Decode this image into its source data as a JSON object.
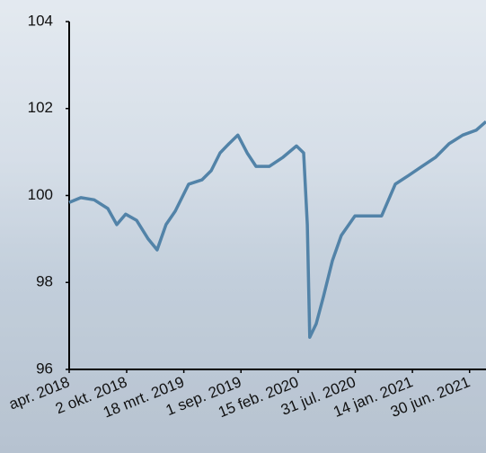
{
  "chart_data": {
    "type": "line",
    "x": [
      "2018-04-17",
      "2018-05-21",
      "2018-06-29",
      "2018-08-08",
      "2018-09-03",
      "2018-09-29",
      "2018-10-31",
      "2018-12-04",
      "2018-12-30",
      "2019-01-25",
      "2019-02-21",
      "2019-04-01",
      "2019-05-10",
      "2019-06-06",
      "2019-07-02",
      "2019-07-28",
      "2019-08-23",
      "2019-09-19",
      "2019-10-15",
      "2019-11-23",
      "2020-01-02",
      "2020-02-10",
      "2020-03-02",
      "2020-03-13",
      "2020-03-20",
      "2020-04-08",
      "2020-04-29",
      "2020-05-25",
      "2020-06-20",
      "2020-07-30",
      "2020-09-07",
      "2020-10-16",
      "2020-11-25",
      "2021-01-03",
      "2021-02-11",
      "2021-03-23",
      "2021-05-01",
      "2021-06-10",
      "2021-07-19",
      "2021-08-17"
    ],
    "values": [
      99.84,
      99.95,
      99.9,
      99.7,
      99.33,
      99.57,
      99.43,
      99.0,
      98.75,
      99.33,
      99.64,
      100.26,
      100.36,
      100.57,
      100.98,
      101.19,
      101.39,
      100.98,
      100.67,
      100.67,
      100.88,
      101.14,
      100.98,
      99.33,
      96.74,
      97.05,
      97.67,
      98.5,
      99.08,
      99.53,
      99.53,
      99.53,
      100.26,
      100.46,
      100.67,
      100.88,
      101.19,
      101.39,
      101.5,
      101.7
    ],
    "color": "#5283a8",
    "xlim": [
      "2018-04-17",
      "2021-08-17"
    ],
    "xticks": [
      {
        "value": "2018-04-17",
        "label": "apr. 2018"
      },
      {
        "value": "2018-10-02",
        "label": "2 okt. 2018"
      },
      {
        "value": "2019-03-18",
        "label": "18 mrt. 2019"
      },
      {
        "value": "2019-09-01",
        "label": "1 sep. 2019"
      },
      {
        "value": "2020-02-15",
        "label": "15 feb. 2020"
      },
      {
        "value": "2020-07-31",
        "label": "31 jul. 2020"
      },
      {
        "value": "2021-01-14",
        "label": "14 jan. 2021"
      },
      {
        "value": "2021-06-30",
        "label": "30 jun. 2021"
      }
    ],
    "ylim": [
      96,
      104
    ],
    "yticks": [
      96,
      98,
      100,
      102,
      104
    ]
  }
}
